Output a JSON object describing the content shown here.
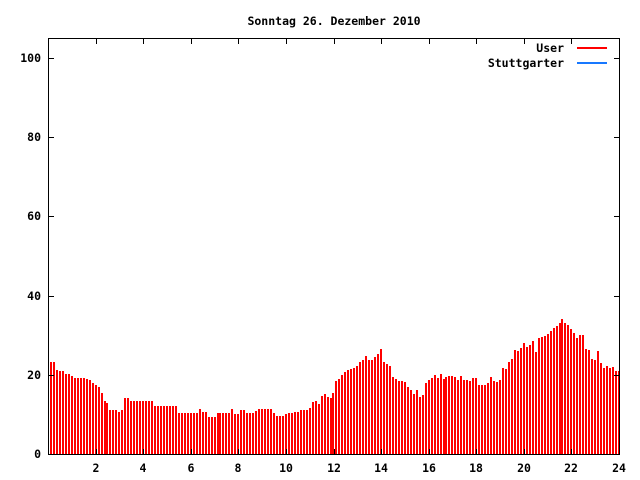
{
  "chart_data": {
    "type": "bar",
    "style": "impulses",
    "title": "Sonntag 26. Dezember 2010",
    "xlabel": "",
    "ylabel": "",
    "xlim": [
      0,
      24
    ],
    "ylim": [
      0,
      105
    ],
    "x_ticks": [
      2,
      4,
      6,
      8,
      10,
      12,
      14,
      16,
      18,
      20,
      22,
      24
    ],
    "y_ticks": [
      0,
      20,
      40,
      60,
      80,
      100
    ],
    "grid": false,
    "legend_position": "top-right",
    "legend": [
      {
        "label": "User",
        "color": "#ff0000"
      },
      {
        "label": "Stuttgarter",
        "color": "#1878ff"
      }
    ],
    "series": [
      {
        "name": "User",
        "color": "#ff0000",
        "x_start_hours": 0,
        "x_step_hours": 0.125,
        "values": [
          23.3,
          23.3,
          21.2,
          21.0,
          20.9,
          20.2,
          20.2,
          19.7,
          19.2,
          19.2,
          19.2,
          19.2,
          19.0,
          18.7,
          18.0,
          17.4,
          16.8,
          15.5,
          13.4,
          12.8,
          11.1,
          11.1,
          11.1,
          10.6,
          11.1,
          14.2,
          14.2,
          13.3,
          13.3,
          13.3,
          13.3,
          13.3,
          13.3,
          13.3,
          13.3,
          12.2,
          12.2,
          12.2,
          12.2,
          12.2,
          12.2,
          12.2,
          12.2,
          10.4,
          10.4,
          10.4,
          10.4,
          10.4,
          10.4,
          10.4,
          11.4,
          10.5,
          10.5,
          9.4,
          9.4,
          9.4,
          10.4,
          10.4,
          10.4,
          10.4,
          10.4,
          11.4,
          10.0,
          10.0,
          11.2,
          11.2,
          10.4,
          10.4,
          10.4,
          10.8,
          11.4,
          11.4,
          11.4,
          11.4,
          11.4,
          10.4,
          9.5,
          9.5,
          9.5,
          10.1,
          10.4,
          10.4,
          10.7,
          10.7,
          11.2,
          11.2,
          11.0,
          11.6,
          13.0,
          13.4,
          12.7,
          14.6,
          15.2,
          14.5,
          14.1,
          15.5,
          18.4,
          19.0,
          20.0,
          20.8,
          21.1,
          21.5,
          21.8,
          22.1,
          23.2,
          23.6,
          24.8,
          23.7,
          23.8,
          24.5,
          25.2,
          26.5,
          23.1,
          22.6,
          22.1,
          19.5,
          18.9,
          18.3,
          18.3,
          18.1,
          16.9,
          16.2,
          15.2,
          16.1,
          14.3,
          15.0,
          17.8,
          18.7,
          19.3,
          20.0,
          19.2,
          20.2,
          19.0,
          19.4,
          19.7,
          19.8,
          19.5,
          18.8,
          19.6,
          18.8,
          18.6,
          18.3,
          19.2,
          19.2,
          17.4,
          17.4,
          17.4,
          17.8,
          19.4,
          18.4,
          18.1,
          18.6,
          21.8,
          21.4,
          23.3,
          24.1,
          26.3,
          26.1,
          26.7,
          28.1,
          26.9,
          27.5,
          28.5,
          25.7,
          29.3,
          29.6,
          29.8,
          30.3,
          31.0,
          31.8,
          32.4,
          33.0,
          34.0,
          33.1,
          32.6,
          31.6,
          30.5,
          29.3,
          30.1,
          30.0,
          26.5,
          26.3,
          24.1,
          23.7,
          26.1,
          23.0,
          21.8,
          22.1,
          21.8,
          22.0,
          21.0,
          21.0
        ]
      },
      {
        "name": "Stuttgarter",
        "color": "#1878ff",
        "x_start_hours": 0,
        "x_step_hours": 0.125,
        "values": []
      }
    ]
  }
}
